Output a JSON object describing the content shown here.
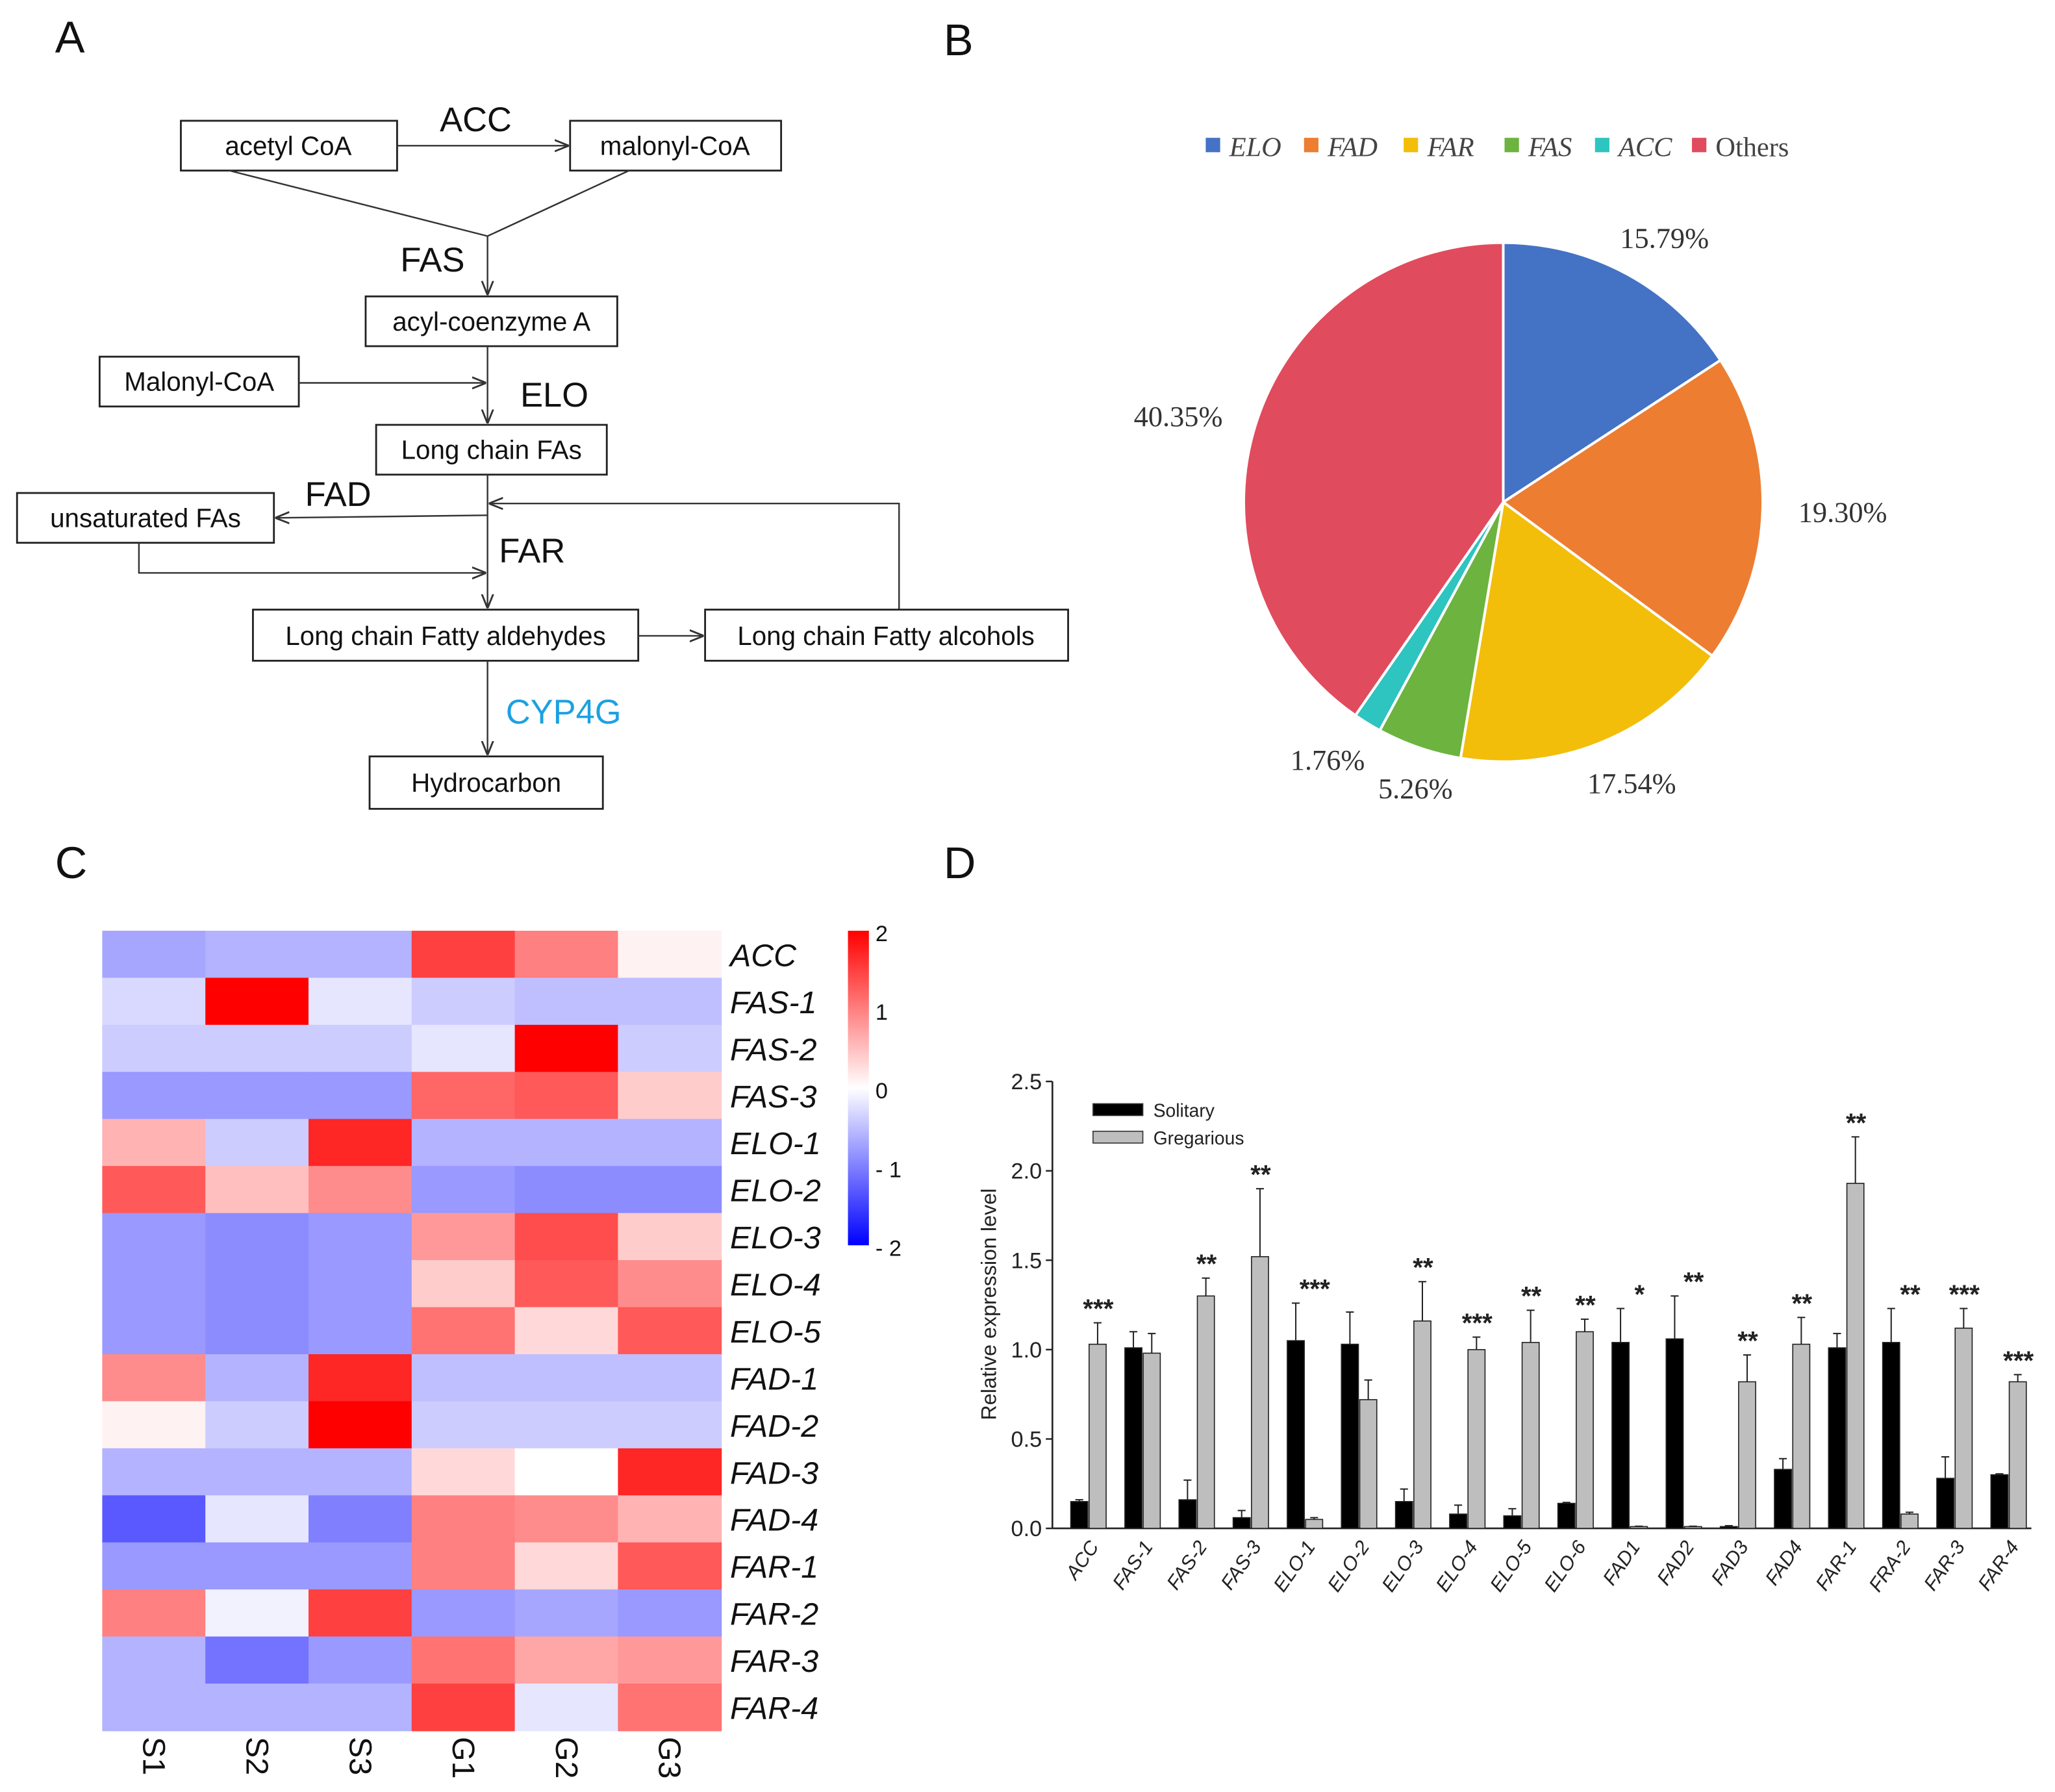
{
  "panels": {
    "a": "A",
    "b": "B",
    "c": "C",
    "d": "D"
  },
  "pathway": {
    "boxes": {
      "acetyl_coa": "acetyl CoA",
      "malonyl_coa_top": "malonyl-CoA",
      "acyl_coa": "acyl-coenzyme A",
      "malonyl_coa_side": "Malonyl-CoA",
      "long_chain_fas": "Long chain FAs",
      "unsaturated_fas": "unsaturated FAs",
      "aldehydes": "Long chain Fatty aldehydes",
      "alcohols": "Long chain Fatty alcohols",
      "hydrocarbon": "Hydrocarbon"
    },
    "enzymes": {
      "acc": "ACC",
      "fas": "FAS",
      "elo": "ELO",
      "fad": "FAD",
      "far": "FAR",
      "cyp4g": "CYP4G"
    },
    "cyp4g_color": "#1BA1E2"
  },
  "chart_data": [
    {
      "type": "pie",
      "legend_placement": "top",
      "labels": [
        "ELO",
        "FAD",
        "FAR",
        "FAS",
        "ACC",
        "Others"
      ],
      "values": [
        15.79,
        19.3,
        17.54,
        5.26,
        1.76,
        40.35
      ],
      "value_labels": [
        "15.79%",
        "19.30%",
        "17.54%",
        "5.26%",
        "1.76%",
        "40.35%"
      ],
      "colors": [
        "#4472C4",
        "#ED7D31",
        "#F2BE0A",
        "#6DB33F",
        "#2EC4C0",
        "#E14B5E"
      ]
    },
    {
      "type": "heatmap",
      "rows": [
        "ACC",
        "FAS-1",
        "FAS-2",
        "FAS-3",
        "ELO-1",
        "ELO-2",
        "ELO-3",
        "ELO-4",
        "ELO-5",
        "FAD-1",
        "FAD-2",
        "FAD-3",
        "FAD-4",
        "FAR-1",
        "FAR-2",
        "FAR-3",
        "FAR-4"
      ],
      "columns": [
        "S1",
        "S2",
        "S3",
        "G1",
        "G2",
        "G3"
      ],
      "values": [
        [
          -0.7,
          -0.6,
          -0.6,
          1.5,
          1.0,
          0.1
        ],
        [
          -0.3,
          2.0,
          -0.2,
          -0.4,
          -0.5,
          -0.5
        ],
        [
          -0.4,
          -0.4,
          -0.4,
          -0.2,
          2.0,
          -0.4
        ],
        [
          -0.8,
          -0.8,
          -0.8,
          1.2,
          1.3,
          0.4
        ],
        [
          0.6,
          -0.4,
          1.7,
          -0.6,
          -0.6,
          -0.6
        ],
        [
          1.3,
          0.5,
          0.9,
          -0.8,
          -0.9,
          -0.9
        ],
        [
          -0.8,
          -0.9,
          -0.8,
          0.8,
          1.4,
          0.4
        ],
        [
          -0.8,
          -0.9,
          -0.8,
          0.4,
          1.3,
          0.9
        ],
        [
          -0.8,
          -0.9,
          -0.8,
          1.1,
          0.3,
          1.3
        ],
        [
          0.9,
          -0.6,
          1.7,
          -0.5,
          -0.5,
          -0.5
        ],
        [
          0.1,
          -0.4,
          2.0,
          -0.4,
          -0.4,
          -0.4
        ],
        [
          -0.6,
          -0.6,
          -0.6,
          0.3,
          0.0,
          1.7
        ],
        [
          -1.3,
          -0.2,
          -1.0,
          1.0,
          0.9,
          0.6
        ],
        [
          -0.8,
          -0.8,
          -0.8,
          1.0,
          0.3,
          1.3
        ],
        [
          1.0,
          -0.1,
          1.5,
          -0.8,
          -0.7,
          -0.8
        ],
        [
          -0.6,
          -1.1,
          -0.8,
          1.1,
          0.7,
          0.8
        ],
        [
          -0.6,
          -0.6,
          -0.6,
          1.5,
          -0.2,
          1.1
        ]
      ],
      "scale": {
        "min": -2,
        "max": 2,
        "ticks": [
          "2",
          "1",
          "0",
          "- 1",
          "- 2"
        ],
        "low_color": "#0000FF",
        "mid_color": "#FFFFFF",
        "high_color": "#FF0000"
      }
    },
    {
      "type": "bar",
      "ylabel": "Relative expression level",
      "ylim": [
        0,
        2.5
      ],
      "yticks": [
        "0.0",
        "0.5",
        "1.0",
        "1.5",
        "2.0",
        "2.5"
      ],
      "legend_placement": "top-left",
      "categories": [
        "ACC",
        "FAS-1",
        "FAS-2",
        "FAS-3",
        "ELO-1",
        "ELO-2",
        "ELO-3",
        "ELO-4",
        "ELO-5",
        "ELO-6",
        "FAD1",
        "FAD2",
        "FAD3",
        "FAD4",
        "FAR-1",
        "FRA-2",
        "FAR-3",
        "FAR-4"
      ],
      "series": [
        {
          "name": "Solitary",
          "color": "#000000",
          "values": [
            0.15,
            1.01,
            0.16,
            0.06,
            1.05,
            1.03,
            0.15,
            0.08,
            0.07,
            0.14,
            1.04,
            1.06,
            0.01,
            0.33,
            1.01,
            1.04,
            0.28,
            0.3
          ],
          "errors": [
            0.01,
            0.09,
            0.11,
            0.04,
            0.21,
            0.18,
            0.07,
            0.05,
            0.04,
            0.005,
            0.19,
            0.24,
            0.005,
            0.06,
            0.08,
            0.19,
            0.12,
            0.005
          ]
        },
        {
          "name": "Gregarious",
          "color": "#BEBEBE",
          "values": [
            1.03,
            0.98,
            1.3,
            1.52,
            0.05,
            0.72,
            1.16,
            1.0,
            1.04,
            1.1,
            0.01,
            0.01,
            0.82,
            1.03,
            1.93,
            0.08,
            1.12,
            0.82
          ],
          "errors": [
            0.12,
            0.11,
            0.1,
            0.38,
            0.01,
            0.11,
            0.22,
            0.07,
            0.18,
            0.07,
            0.002,
            0.002,
            0.15,
            0.15,
            0.26,
            0.01,
            0.11,
            0.04
          ]
        }
      ],
      "significance": [
        "***",
        "",
        "**",
        "**",
        "***",
        "",
        "**",
        "***",
        "**",
        "**",
        "*",
        "**",
        "**",
        "**",
        "**",
        "**",
        "***",
        "***"
      ]
    }
  ]
}
